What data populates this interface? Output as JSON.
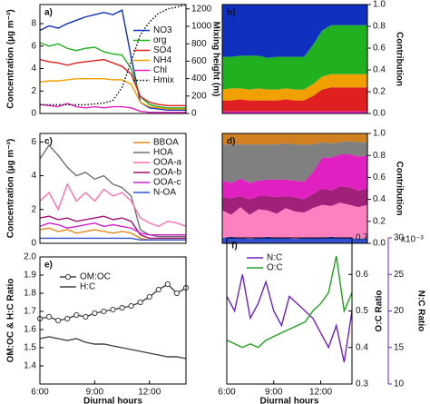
{
  "chart_data": [
    {
      "type": "line",
      "panel_label": "a)",
      "ylabel": "Concentration (µg m⁻³)",
      "y2label": "Mixing height (m)",
      "x": [
        6,
        6.5,
        7,
        7.5,
        8,
        8.5,
        9,
        9.5,
        10,
        10.5,
        11,
        11.5,
        12,
        12.5,
        13,
        13.5,
        14
      ],
      "xlim": [
        6,
        14
      ],
      "ylim": [
        0,
        9.7
      ],
      "yticks": [
        0,
        2,
        4,
        6,
        8
      ],
      "y2lim": [
        0,
        1250
      ],
      "y2ticks": [
        0,
        200,
        400,
        600,
        800,
        1000,
        1200
      ],
      "legend": "right",
      "series": [
        {
          "name": "NO3",
          "color": "#1030c0",
          "values": [
            7.4,
            7.8,
            7.6,
            8.0,
            8.3,
            8.6,
            8.8,
            9.0,
            8.8,
            9.2,
            5.0,
            1.0,
            0.5,
            0.4,
            0.3,
            0.3,
            0.3
          ]
        },
        {
          "name": "org",
          "color": "#20b020",
          "values": [
            6.3,
            6.0,
            6.2,
            5.8,
            5.6,
            5.8,
            5.9,
            5.5,
            5.3,
            5.2,
            4.0,
            1.5,
            0.8,
            0.6,
            0.5,
            0.5,
            0.5
          ]
        },
        {
          "name": "SO4",
          "color": "#e02020",
          "values": [
            4.8,
            4.6,
            4.5,
            4.3,
            4.5,
            4.6,
            4.7,
            4.8,
            4.5,
            4.2,
            3.5,
            1.5,
            1.0,
            0.8,
            0.7,
            0.7,
            0.7
          ]
        },
        {
          "name": "NH4",
          "color": "#f0a000",
          "values": [
            2.8,
            2.9,
            2.9,
            3.0,
            3.1,
            3.1,
            3.1,
            3.1,
            3.0,
            3.0,
            2.6,
            1.0,
            0.6,
            0.5,
            0.4,
            0.4,
            0.4
          ]
        },
        {
          "name": "Chl",
          "color": "#e020c0",
          "values": [
            0.8,
            0.7,
            0.6,
            0.9,
            0.6,
            0.5,
            0.6,
            0.5,
            0.6,
            0.6,
            0.5,
            0.2,
            0.1,
            0.1,
            0.1,
            0.1,
            0.1
          ]
        },
        {
          "name": "Hmix",
          "color": "#000000",
          "dash": "dotted",
          "axis": "y2",
          "values": [
            100,
            100,
            100,
            100,
            100,
            100,
            110,
            120,
            150,
            300,
            600,
            900,
            1050,
            1150,
            1200,
            1220,
            1250
          ]
        }
      ]
    },
    {
      "type": "area",
      "panel_label": "b)",
      "y2label": "Contribution",
      "x": [
        6,
        6.5,
        7,
        7.5,
        8,
        8.5,
        9,
        9.5,
        10,
        10.5,
        11,
        11.5,
        12,
        12.5,
        13,
        13.5,
        14
      ],
      "xlim": [
        6,
        14
      ],
      "y2lim": [
        0,
        1
      ],
      "y2ticks": [
        {
          "value": 0,
          "label": "0.0"
        },
        0.2,
        0.4,
        0.6,
        0.8,
        {
          "value": 1,
          "label": "1.0"
        }
      ],
      "series": [
        {
          "color": "#e020c0",
          "axis": "y2",
          "values": [
            0.02,
            0.02,
            0.02,
            0.02,
            0.02,
            0.02,
            0.02,
            0.02,
            0.02,
            0.02,
            0.02,
            0.02,
            0.02,
            0.02,
            0.02,
            0.02,
            0.02
          ]
        },
        {
          "color": "#e02020",
          "axis": "y2",
          "values": [
            0.1,
            0.1,
            0.11,
            0.1,
            0.1,
            0.1,
            0.1,
            0.11,
            0.1,
            0.1,
            0.14,
            0.2,
            0.22,
            0.22,
            0.22,
            0.22,
            0.22
          ]
        },
        {
          "color": "#f0a000",
          "axis": "y2",
          "values": [
            0.1,
            0.11,
            0.1,
            0.1,
            0.11,
            0.1,
            0.1,
            0.1,
            0.1,
            0.1,
            0.11,
            0.12,
            0.12,
            0.12,
            0.12,
            0.12,
            0.12
          ]
        },
        {
          "color": "#20b020",
          "axis": "y2",
          "values": [
            0.3,
            0.29,
            0.3,
            0.31,
            0.3,
            0.29,
            0.3,
            0.29,
            0.3,
            0.3,
            0.36,
            0.42,
            0.45,
            0.45,
            0.45,
            0.45,
            0.45
          ]
        },
        {
          "color": "#1030c0",
          "axis": "y2",
          "values": [
            0.48,
            0.48,
            0.47,
            0.47,
            0.47,
            0.49,
            0.48,
            0.48,
            0.48,
            0.48,
            0.37,
            0.24,
            0.19,
            0.19,
            0.19,
            0.19,
            0.19
          ]
        }
      ]
    },
    {
      "type": "line",
      "panel_label": "c)",
      "ylabel": "Concentration (µg m⁻³)",
      "x": [
        6,
        6.5,
        7,
        7.5,
        8,
        8.5,
        9,
        9.5,
        10,
        10.5,
        11,
        11.5,
        12,
        12.5,
        13,
        13.5,
        14
      ],
      "xlim": [
        6,
        14
      ],
      "ylim": [
        0,
        6.5
      ],
      "yticks": [
        0,
        2,
        4,
        6
      ],
      "legend": "upper right",
      "series": [
        {
          "name": "BBOA",
          "color": "#e08a1e",
          "values": [
            0.8,
            0.9,
            0.7,
            0.8,
            0.6,
            0.7,
            0.8,
            0.7,
            0.6,
            0.7,
            0.6,
            0.3,
            0.2,
            0.2,
            0.2,
            0.2,
            0.2
          ]
        },
        {
          "name": "HOA",
          "color": "#707070",
          "values": [
            5.0,
            5.8,
            5.2,
            4.5,
            4.0,
            4.2,
            3.8,
            4.0,
            3.5,
            3.3,
            2.8,
            0.8,
            0.5,
            0.4,
            0.4,
            0.4,
            0.4
          ]
        },
        {
          "name": "OOA-a",
          "color": "#ff70b0",
          "values": [
            2.5,
            3.0,
            2.0,
            3.5,
            2.5,
            3.0,
            2.5,
            3.2,
            2.8,
            3.0,
            2.5,
            1.5,
            1.2,
            1.0,
            1.3,
            1.2,
            1.0
          ]
        },
        {
          "name": "OOA-b",
          "color": "#a01070",
          "values": [
            1.5,
            1.6,
            1.4,
            1.5,
            1.3,
            1.4,
            1.5,
            1.6,
            1.4,
            1.5,
            1.3,
            0.5,
            0.3,
            0.3,
            0.3,
            0.3,
            0.3
          ]
        },
        {
          "name": "OOA-c",
          "color": "#d020d0",
          "values": [
            1.0,
            1.2,
            1.1,
            0.9,
            1.0,
            1.1,
            1.2,
            1.0,
            1.1,
            1.0,
            0.9,
            0.6,
            0.5,
            0.5,
            0.5,
            0.5,
            0.5
          ]
        },
        {
          "name": "N-OA",
          "color": "#3050d0",
          "values": [
            0.3,
            0.3,
            0.3,
            0.3,
            0.3,
            0.3,
            0.3,
            0.3,
            0.3,
            0.3,
            0.3,
            0.2,
            0.2,
            0.2,
            0.2,
            0.2,
            0.2
          ]
        }
      ]
    },
    {
      "type": "area",
      "panel_label": "d)",
      "y2label": "Contribution",
      "x": [
        6,
        6.5,
        7,
        7.5,
        8,
        8.5,
        9,
        9.5,
        10,
        10.5,
        11,
        11.5,
        12,
        12.5,
        13,
        13.5,
        14
      ],
      "xlim": [
        6,
        14
      ],
      "y2lim": [
        0,
        1
      ],
      "y2ticks": [
        {
          "value": 0,
          "label": "0.0"
        },
        0.2,
        0.4,
        0.6,
        0.8,
        {
          "value": 1,
          "label": "1.0"
        }
      ],
      "series": [
        {
          "color": "#3050d0",
          "axis": "y2",
          "values": [
            0.05,
            0.06,
            0.05,
            0.04,
            0.05,
            0.06,
            0.05,
            0.05,
            0.04,
            0.05,
            0.05,
            0.05,
            0.06,
            0.05,
            0.05,
            0.04,
            0.05
          ]
        },
        {
          "color": "#ff80c0",
          "axis": "y2",
          "values": [
            0.25,
            0.2,
            0.28,
            0.22,
            0.26,
            0.24,
            0.22,
            0.27,
            0.25,
            0.23,
            0.27,
            0.3,
            0.28,
            0.32,
            0.3,
            0.29,
            0.3
          ]
        },
        {
          "color": "#a0207a",
          "axis": "y2",
          "values": [
            0.12,
            0.15,
            0.1,
            0.14,
            0.12,
            0.13,
            0.15,
            0.11,
            0.13,
            0.12,
            0.13,
            0.15,
            0.14,
            0.15,
            0.16,
            0.15,
            0.15
          ]
        },
        {
          "color": "#e020c0",
          "axis": "y2",
          "values": [
            0.15,
            0.14,
            0.16,
            0.15,
            0.14,
            0.15,
            0.16,
            0.15,
            0.15,
            0.16,
            0.2,
            0.28,
            0.3,
            0.29,
            0.3,
            0.31,
            0.3
          ]
        },
        {
          "color": "#808080",
          "axis": "y2",
          "values": [
            0.33,
            0.35,
            0.31,
            0.35,
            0.33,
            0.32,
            0.32,
            0.33,
            0.33,
            0.34,
            0.25,
            0.14,
            0.13,
            0.11,
            0.12,
            0.13,
            0.12
          ]
        },
        {
          "color": "#d08020",
          "axis": "y2",
          "values": [
            0.1,
            0.1,
            0.1,
            0.1,
            0.1,
            0.1,
            0.1,
            0.09,
            0.1,
            0.1,
            0.1,
            0.08,
            0.09,
            0.08,
            0.07,
            0.08,
            0.08
          ]
        }
      ]
    },
    {
      "type": "line",
      "panel_label": "e)",
      "ylabel": "OM:OC & H:C Ratio",
      "xlabel": "Diurnal hours",
      "x": [
        6,
        6.5,
        7,
        7.5,
        8,
        8.5,
        9,
        9.5,
        10,
        10.5,
        11,
        11.5,
        12,
        12.5,
        13,
        13.5,
        14
      ],
      "xlim": [
        6,
        14
      ],
      "xticks": [
        {
          "value": 6,
          "label": "6:00"
        },
        {
          "value": 9,
          "label": "9:00"
        },
        {
          "value": 12,
          "label": "12:00"
        }
      ],
      "ylim": [
        1.3,
        2.0
      ],
      "yticks": [
        1.4,
        1.5,
        1.6,
        1.7,
        1.8,
        1.9,
        {
          "value": 2,
          "label": "2.0"
        }
      ],
      "legend": "upper left",
      "series": [
        {
          "name": "OM:OC",
          "color": "#404040",
          "marker": "circle",
          "values": [
            1.66,
            1.67,
            1.65,
            1.66,
            1.68,
            1.67,
            1.69,
            1.7,
            1.71,
            1.72,
            1.73,
            1.75,
            1.78,
            1.82,
            1.85,
            1.8,
            1.83
          ]
        },
        {
          "name": "H:C",
          "color": "#404040",
          "values": [
            1.55,
            1.56,
            1.55,
            1.54,
            1.55,
            1.53,
            1.52,
            1.52,
            1.51,
            1.5,
            1.49,
            1.48,
            1.47,
            1.46,
            1.45,
            1.45,
            1.44
          ]
        }
      ]
    },
    {
      "type": "line",
      "panel_label": "f)",
      "ylabel": "O:C Ratio",
      "y2label": "N:C Ratio",
      "y2_note": "x10⁻³",
      "xlabel": "Diurnal hours",
      "x": [
        6,
        6.5,
        7,
        7.5,
        8,
        8.5,
        9,
        9.5,
        10,
        10.5,
        11,
        11.5,
        12,
        12.5,
        13,
        13.5,
        14
      ],
      "xlim": [
        6,
        14
      ],
      "xticks": [
        {
          "value": 6,
          "label": "6:00"
        },
        {
          "value": 9,
          "label": "9:00"
        },
        {
          "value": 12,
          "label": "12:00"
        }
      ],
      "ylim": [
        0.3,
        0.7
      ],
      "yticks": [
        0.3,
        0.4,
        0.5,
        0.6,
        0.7
      ],
      "y2lim": [
        10,
        30
      ],
      "y2ticks": [
        10,
        15,
        20,
        25,
        30
      ],
      "legend": "upper left",
      "series": [
        {
          "name": "N:C",
          "color": "#7020c0",
          "axis": "y2",
          "values": [
            22,
            20,
            25,
            19,
            21,
            24,
            20,
            18,
            22,
            21,
            20,
            19,
            17,
            15,
            18,
            13,
            20
          ]
        },
        {
          "name": "O:C",
          "color": "#20a020",
          "values": [
            0.42,
            0.41,
            0.4,
            0.41,
            0.4,
            0.42,
            0.43,
            0.44,
            0.45,
            0.46,
            0.47,
            0.5,
            0.52,
            0.55,
            0.65,
            0.5,
            0.55
          ]
        }
      ]
    }
  ]
}
